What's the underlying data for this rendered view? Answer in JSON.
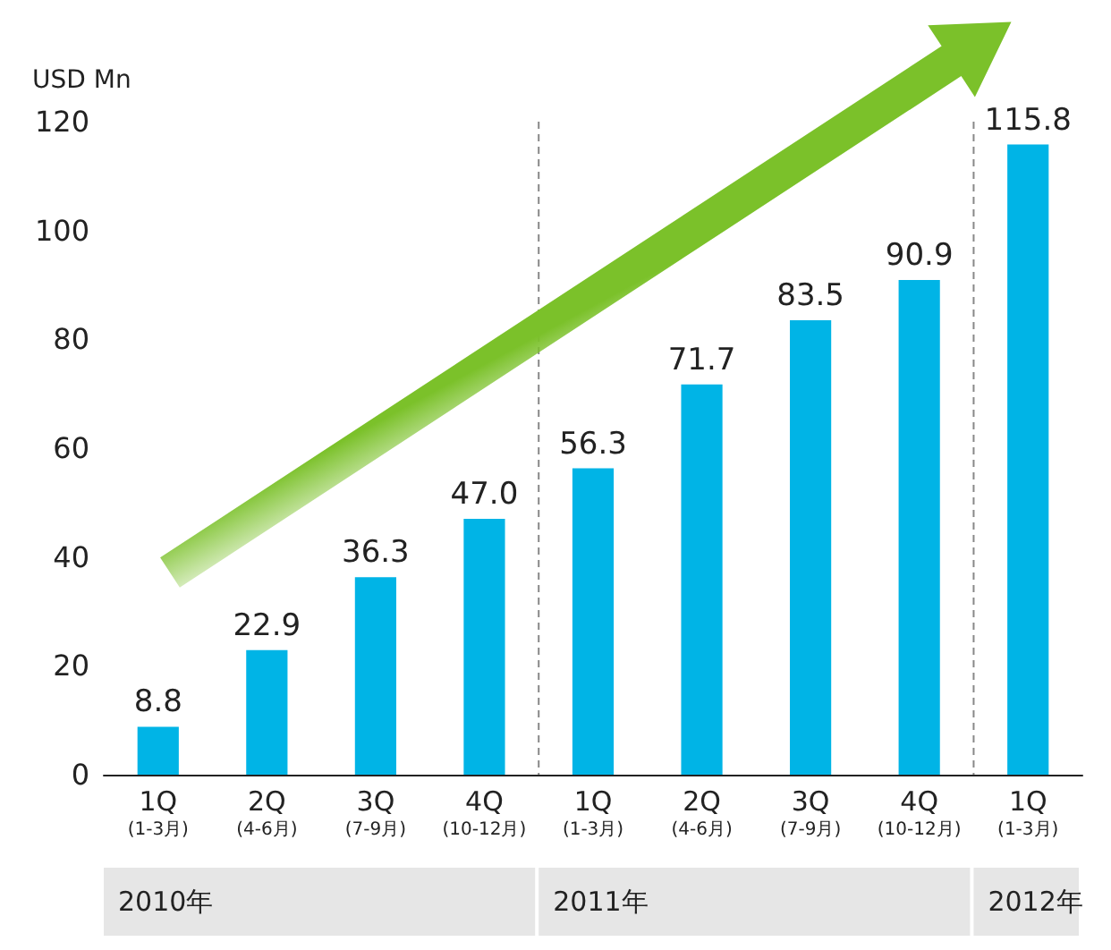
{
  "chart_data": {
    "type": "bar",
    "ylabel": "USD Mn",
    "categories": [
      "1Q\n(1-3月)",
      "2Q\n(4-6月)",
      "3Q\n(7-9月)",
      "4Q\n(10-12月)",
      "1Q\n(1-3月)",
      "2Q\n(4-6月)",
      "3Q\n(7-9月)",
      "4Q\n(10-12月)",
      "1Q\n(1-3月)"
    ],
    "values": [
      8.8,
      22.9,
      36.3,
      47.0,
      56.3,
      71.7,
      83.5,
      90.9,
      115.8
    ],
    "value_labels": [
      "8.8",
      "22.9",
      "36.3",
      "47.0",
      "56.3",
      "71.7",
      "83.5",
      "90.9",
      "115.8"
    ],
    "color": "#00b4e6",
    "ylim": [
      0,
      120
    ],
    "yticks": [
      0,
      20,
      40,
      60,
      80,
      100,
      120
    ],
    "grid": false,
    "annotations": [
      "2010年",
      "2011年",
      "2012年"
    ]
  }
}
